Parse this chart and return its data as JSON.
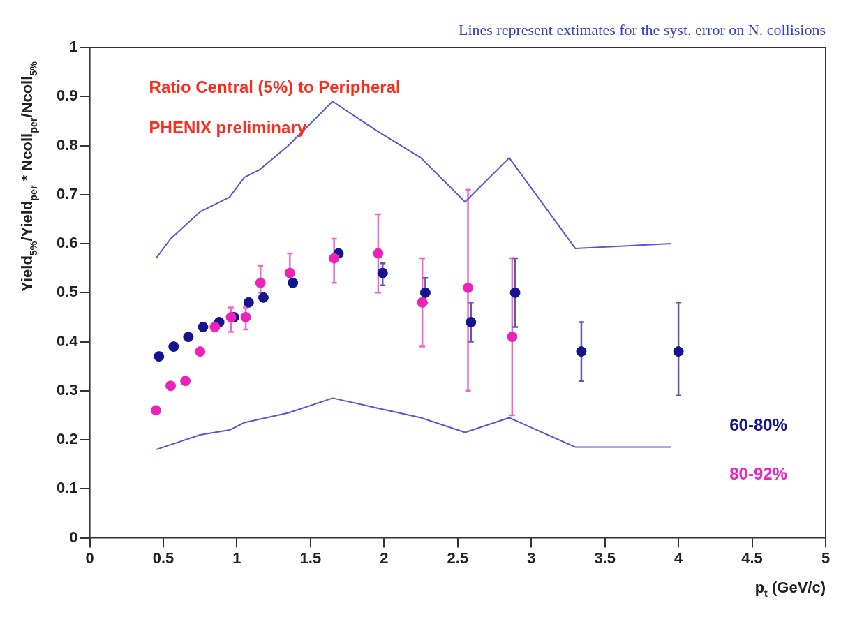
{
  "chart_data": {
    "type": "scatter",
    "title": "Lines represent extimates for the syst. error on N. collisions",
    "xlabel": "p$_{t}$ (GeV/c)",
    "ylabel": "Yield$_{5%}$/Yield$_{per}$ * Ncoll$_{per}$/Ncoll$_{5%}$",
    "annotations": [
      "Ratio Central (5%) to Peripheral",
      "PHENIX preliminary"
    ],
    "xlim": [
      0,
      5
    ],
    "xticks": [
      0,
      0.5,
      1,
      1.5,
      2,
      2.5,
      3,
      3.5,
      4,
      4.5,
      5
    ],
    "ylim": [
      0,
      1
    ],
    "yticks": [
      0,
      0.1,
      0.2,
      0.3,
      0.4,
      0.5,
      0.6,
      0.7,
      0.8,
      0.9,
      1
    ],
    "grid": false,
    "legend": "bottom right",
    "marker": "circle",
    "series": [
      {
        "name": "60-80%",
        "color": "#141490",
        "x": [
          0.47,
          0.57,
          0.67,
          0.77,
          0.88,
          0.98,
          1.08,
          1.18,
          1.38,
          1.69,
          1.99,
          2.28,
          2.59,
          2.89,
          3.34,
          4.0
        ],
        "values": [
          0.37,
          0.39,
          0.41,
          0.43,
          0.44,
          0.45,
          0.48,
          0.49,
          0.52,
          0.58,
          0.54,
          0.5,
          0.44,
          0.5,
          0.38,
          0.38
        ],
        "errors": [
          null,
          null,
          null,
          null,
          null,
          null,
          null,
          null,
          null,
          null,
          [
            0.515,
            0.56
          ],
          [
            0.48,
            0.53
          ],
          [
            0.4,
            0.48
          ],
          [
            0.43,
            0.57
          ],
          [
            0.32,
            0.44
          ],
          [
            0.29,
            0.48
          ]
        ]
      },
      {
        "name": "80-92%",
        "color": "#ee22bb",
        "x": [
          0.45,
          0.55,
          0.65,
          0.75,
          0.85,
          0.96,
          1.06,
          1.16,
          1.36,
          1.66,
          1.96,
          2.26,
          2.57,
          2.87
        ],
        "values": [
          0.26,
          0.31,
          0.32,
          0.38,
          0.43,
          0.45,
          0.45,
          0.52,
          0.54,
          0.57,
          0.58,
          0.48,
          0.51,
          0.41
        ],
        "errors": [
          null,
          null,
          null,
          null,
          null,
          [
            0.42,
            0.47
          ],
          [
            0.425,
            0.47
          ],
          [
            0.5,
            0.555
          ],
          [
            0.54,
            0.58
          ],
          [
            0.52,
            0.61
          ],
          [
            0.5,
            0.66
          ],
          [
            0.39,
            0.57
          ],
          [
            0.3,
            0.71
          ],
          [
            0.25,
            0.57
          ]
        ]
      },
      {
        "type": "line",
        "color": "#5555dd",
        "marker": "none",
        "x": [
          0.45,
          0.55,
          0.75,
          0.95,
          1.05,
          1.15,
          1.35,
          1.65,
          1.95,
          2.25,
          2.55,
          2.85,
          3.3,
          3.95
        ],
        "values": [
          0.57,
          0.61,
          0.665,
          0.695,
          0.735,
          0.75,
          0.8,
          0.89,
          0.83,
          0.775,
          0.685,
          0.775,
          0.59,
          0.6
        ]
      },
      {
        "type": "line",
        "color": "#5555dd",
        "marker": "none",
        "x": [
          0.45,
          0.75,
          0.95,
          1.05,
          1.35,
          1.65,
          1.95,
          2.25,
          2.55,
          2.85,
          3.3,
          3.95
        ],
        "values": [
          0.18,
          0.21,
          0.22,
          0.235,
          0.255,
          0.285,
          0.265,
          0.245,
          0.215,
          0.245,
          0.185,
          0.185
        ]
      }
    ]
  }
}
